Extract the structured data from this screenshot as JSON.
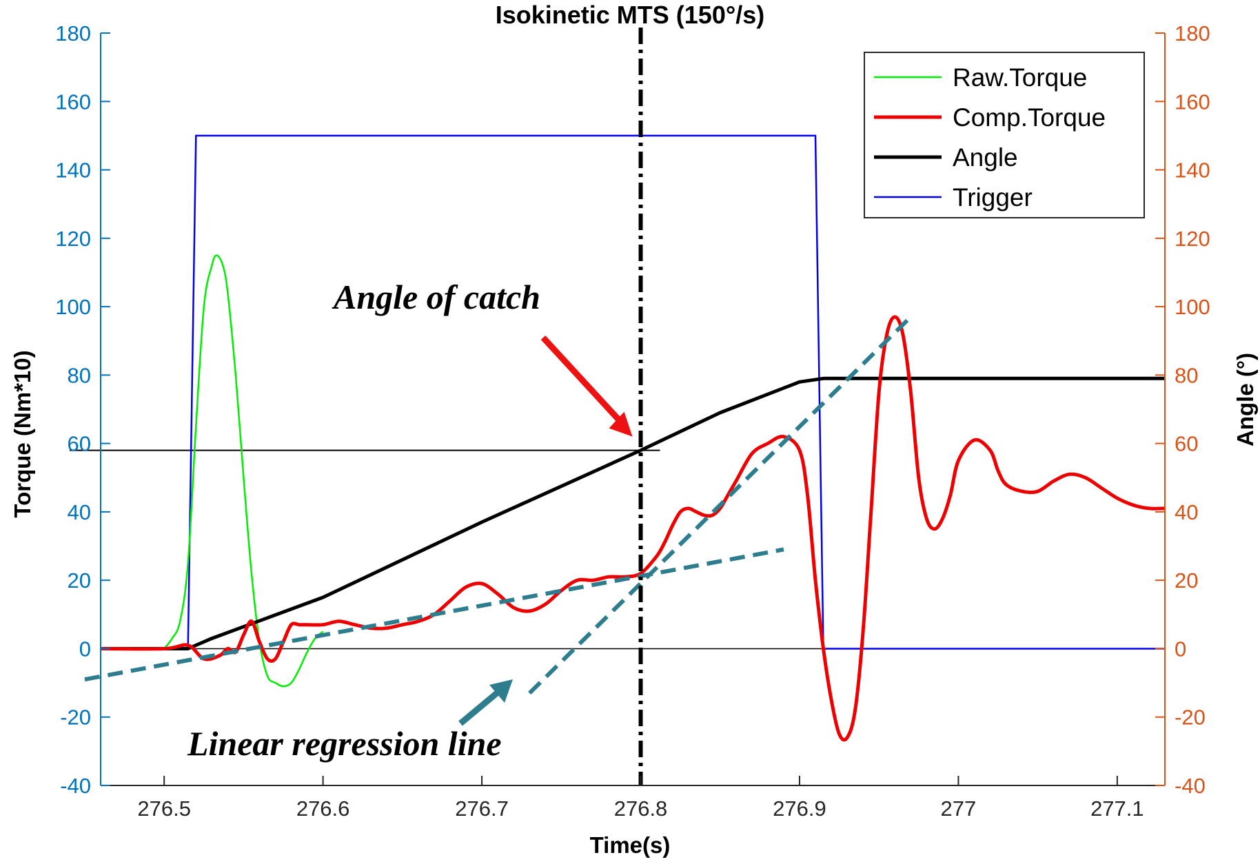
{
  "chart_data": {
    "type": "line",
    "title": "Isokinetic MTS (150°/s)",
    "xlabel": "Time(s)",
    "ylabel_left": "Torque (Nm*10)",
    "ylabel_right": "Angle (°)",
    "xlim": [
      276.46,
      277.13
    ],
    "ylim_left": [
      -40,
      180
    ],
    "ylim_right": [
      -40,
      180
    ],
    "x_ticks": [
      276.5,
      276.6,
      276.7,
      276.8,
      276.9,
      277.0,
      277.1
    ],
    "x_tick_labels": [
      "276.5",
      "276.6",
      "276.7",
      "276.8",
      "276.9",
      "277",
      "277.1"
    ],
    "y_ticks_left": [
      -40,
      -20,
      0,
      20,
      40,
      60,
      80,
      100,
      120,
      140,
      160,
      180
    ],
    "y_tick_labels_left": [
      "-40",
      "-20",
      "0",
      "20",
      "40",
      "60",
      "80",
      "100",
      "120",
      "140",
      "160",
      "180"
    ],
    "y_ticks_right": [
      -40,
      -20,
      0,
      20,
      40,
      60,
      80,
      100,
      120,
      140,
      160,
      180
    ],
    "y_tick_labels_right": [
      "-40",
      "-20",
      "0",
      "20",
      "40",
      "60",
      "80",
      "100",
      "120",
      "140",
      "160",
      "180"
    ],
    "grid": false,
    "legend_position": "top-right",
    "colors": {
      "left_axis": "#0072BD",
      "right_axis": "#D95319",
      "raw_torque": "#00EE00",
      "comp_torque": "#EE0000",
      "angle": "#000000",
      "trigger": "#0000EE",
      "regression": "#2E7D8F",
      "arrow_catch": "#EE1111",
      "arrow_regression": "#2E7D8F"
    },
    "series": [
      {
        "name": "Raw.Torque",
        "axis": "left",
        "x": [
          276.5,
          276.505,
          276.51,
          276.515,
          276.52,
          276.525,
          276.53,
          276.533,
          276.537,
          276.54,
          276.545,
          276.55,
          276.555,
          276.56,
          276.565,
          276.57,
          276.575,
          276.58,
          276.585,
          276.59,
          276.595,
          276.6
        ],
        "y": [
          0,
          3,
          8,
          25,
          65,
          100,
          112,
          115,
          112,
          104,
          80,
          50,
          22,
          2,
          -8,
          -10,
          -11,
          -10,
          -6,
          -1,
          3,
          5
        ]
      },
      {
        "name": "Comp.Torque",
        "axis": "left",
        "x": [
          276.46,
          276.5,
          276.515,
          276.525,
          276.535,
          276.54,
          276.545,
          276.55,
          276.555,
          276.56,
          276.565,
          276.57,
          276.575,
          276.58,
          276.585,
          276.59,
          276.6,
          276.61,
          276.62,
          276.63,
          276.64,
          276.65,
          276.66,
          276.67,
          276.68,
          276.69,
          276.7,
          276.71,
          276.72,
          276.73,
          276.74,
          276.75,
          276.76,
          276.77,
          276.78,
          276.79,
          276.8,
          276.81,
          276.815,
          276.82,
          276.825,
          276.83,
          276.835,
          276.84,
          276.845,
          276.85,
          276.855,
          276.86,
          276.87,
          276.88,
          276.89,
          276.9,
          276.905,
          276.91,
          276.915,
          276.92,
          276.925,
          276.93,
          276.935,
          276.94,
          276.945,
          276.95,
          276.955,
          276.96,
          276.965,
          276.97,
          276.975,
          276.98,
          276.985,
          276.99,
          276.995,
          277.0,
          277.01,
          277.02,
          277.025,
          277.03,
          277.04,
          277.05,
          277.06,
          277.07,
          277.08,
          277.09,
          277.1,
          277.11,
          277.12,
          277.13
        ],
        "y": [
          0,
          0,
          1,
          -3,
          -2,
          0,
          -1,
          4,
          8,
          2,
          -3,
          -3,
          2,
          7,
          7,
          7,
          7,
          8,
          7,
          6,
          6,
          7,
          8,
          10,
          14,
          18,
          19,
          16,
          12,
          11,
          13,
          17,
          20,
          20,
          21,
          21,
          22,
          27,
          31,
          36,
          40,
          41,
          40,
          39,
          39,
          41,
          45,
          49,
          57,
          60,
          62,
          58,
          45,
          20,
          0,
          -15,
          -25,
          -26,
          -18,
          5,
          40,
          75,
          92,
          97,
          92,
          75,
          50,
          38,
          35,
          38,
          45,
          55,
          61,
          58,
          52,
          48,
          46,
          46,
          49,
          51,
          50,
          47,
          44,
          42,
          41,
          41
        ],
        "extra_values_note_free": []
      },
      {
        "name": "Angle",
        "axis": "right",
        "x": [
          276.46,
          276.515,
          276.53,
          276.6,
          276.7,
          276.8,
          276.85,
          276.9,
          276.915,
          277.0,
          277.13
        ],
        "y": [
          0,
          0,
          3,
          15,
          37,
          58,
          69,
          78,
          79,
          79,
          79
        ]
      },
      {
        "name": "Trigger",
        "axis": "left",
        "x": [
          276.46,
          276.515,
          276.52,
          276.91,
          276.915,
          277.13
        ],
        "y": [
          0,
          0,
          150,
          150,
          0,
          0
        ]
      }
    ],
    "reference_lines": {
      "catch_time": 276.8,
      "catch_angle": 58,
      "zero_line": 0
    },
    "regression_lines": [
      {
        "x": [
          276.45,
          276.89
        ],
        "y": [
          -9,
          29
        ]
      },
      {
        "x": [
          276.73,
          276.97
        ],
        "y": [
          -13,
          97
        ]
      }
    ],
    "annotations": {
      "angle_of_catch": "Angle of catch",
      "linear_regression": "Linear regression line"
    },
    "legend": [
      "Raw.Torque",
      "Comp.Torque",
      "Angle",
      "Trigger"
    ]
  }
}
